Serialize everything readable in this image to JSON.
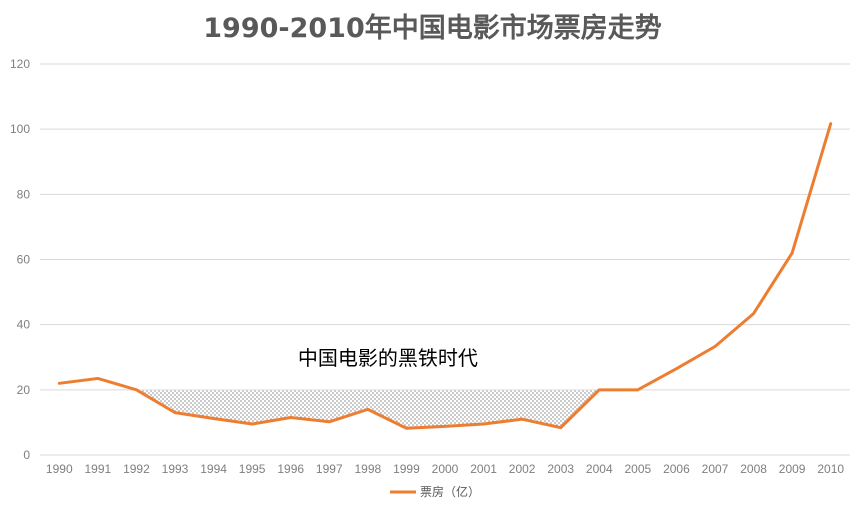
{
  "chart_data": {
    "type": "line",
    "title": "1990-2010年中国电影市场票房走势",
    "xlabel": "",
    "ylabel": "",
    "categories": [
      "1990",
      "1991",
      "1992",
      "1993",
      "1994",
      "1995",
      "1996",
      "1997",
      "1998",
      "1999",
      "2000",
      "2001",
      "2002",
      "2003",
      "2004",
      "2005",
      "2006",
      "2007",
      "2008",
      "2009",
      "2010"
    ],
    "series": [
      {
        "name": "票房（亿）",
        "color": "#ED7D31",
        "values": [
          22,
          23.5,
          20,
          13,
          11.2,
          9.5,
          11.5,
          10.2,
          14,
          8.2,
          8.8,
          9.5,
          11,
          8.4,
          20,
          20,
          26.5,
          33.3,
          43.4,
          62,
          101.7
        ]
      }
    ],
    "ylim": [
      0,
      120
    ],
    "yticks": [
      0,
      20,
      40,
      60,
      80,
      100,
      120
    ],
    "grid": true,
    "legend_position": "bottom",
    "annotation": {
      "text": "中国电影的黑铁时代",
      "shaded_from": "1992",
      "shaded_to": "2004",
      "shaded_top": 20
    }
  }
}
